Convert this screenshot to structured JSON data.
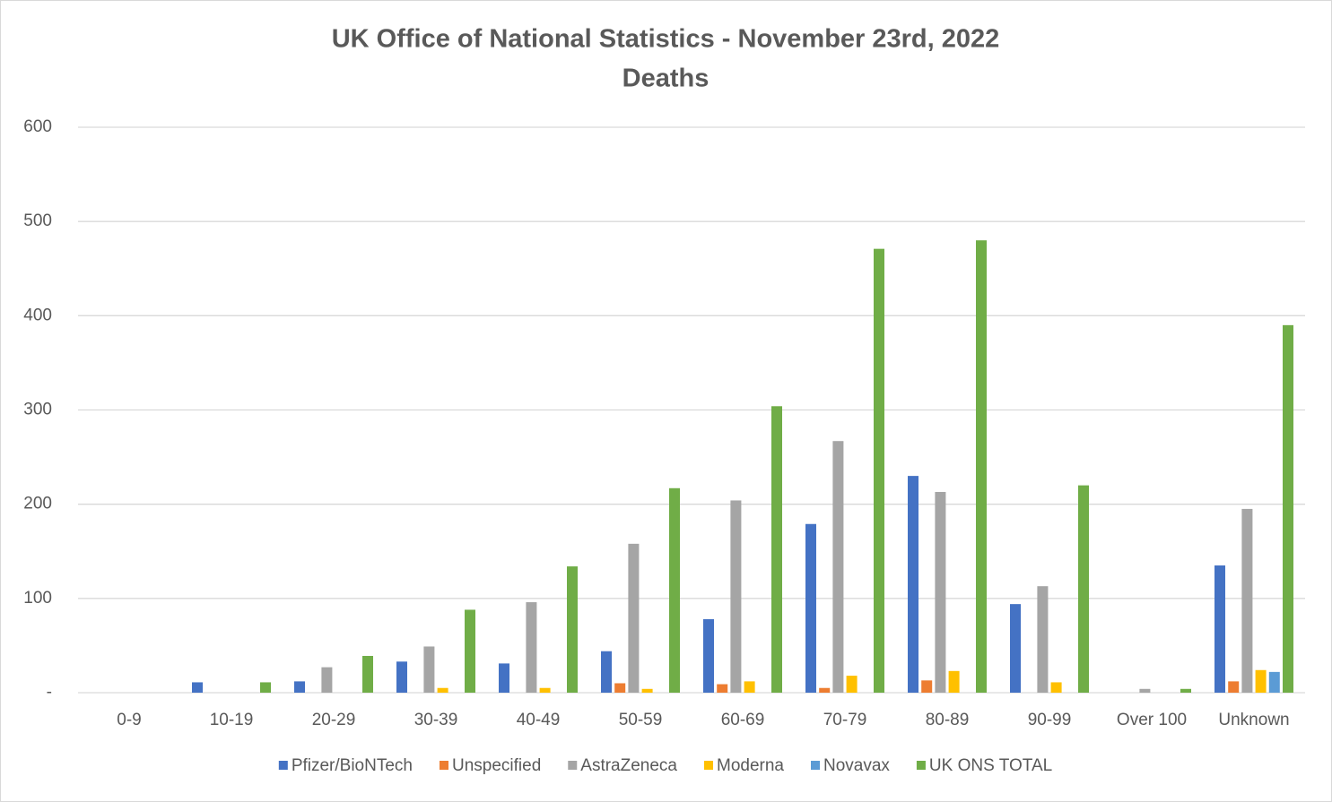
{
  "chart_data": {
    "type": "bar",
    "title": "UK Office of National Statistics - November 23rd, 2022",
    "subtitle": "Deaths",
    "categories": [
      "0-9",
      "10-19",
      "20-29",
      "30-39",
      "40-49",
      "50-59",
      "60-69",
      "70-79",
      "80-89",
      "90-99",
      "Over 100",
      "Unknown"
    ],
    "series": [
      {
        "name": "Pfizer/BioNTech",
        "color": "#4472c4",
        "values": [
          0,
          11,
          12,
          33,
          31,
          44,
          78,
          179,
          230,
          94,
          0,
          135
        ]
      },
      {
        "name": "Unspecified",
        "color": "#ed7d31",
        "values": [
          0,
          0,
          0,
          0,
          0,
          10,
          9,
          5,
          13,
          0,
          0,
          12
        ]
      },
      {
        "name": "AstraZeneca",
        "color": "#a5a5a5",
        "values": [
          0,
          0,
          27,
          49,
          96,
          158,
          204,
          267,
          213,
          113,
          4,
          195
        ]
      },
      {
        "name": "Moderna",
        "color": "#ffc000",
        "values": [
          0,
          0,
          0,
          5,
          5,
          4,
          12,
          18,
          23,
          11,
          0,
          24
        ]
      },
      {
        "name": "Novavax",
        "color": "#5b9bd5",
        "values": [
          0,
          0,
          0,
          0,
          0,
          0,
          0,
          0,
          0,
          0,
          0,
          22
        ]
      },
      {
        "name": "UK ONS TOTAL",
        "color": "#70ad47",
        "values": [
          0,
          11,
          39,
          88,
          134,
          217,
          304,
          471,
          480,
          220,
          4,
          390
        ]
      }
    ],
    "ylim": [
      0,
      600
    ],
    "yticks": [
      {
        "value": 0,
        "label": "-"
      },
      100,
      200,
      300,
      400,
      500,
      600
    ],
    "grid": true,
    "legend": "bottom"
  }
}
